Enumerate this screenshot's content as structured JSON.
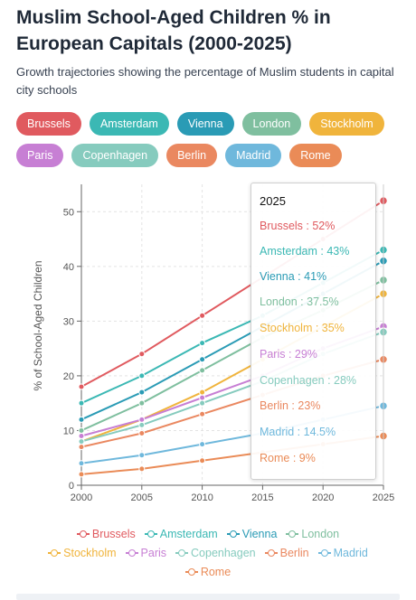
{
  "title": "Muslim School-Aged Children % in European Capitals (2000-2025)",
  "subtitle": "Growth trajectories showing the percentage of Muslim students in capital city schools",
  "colors": {
    "Brussels": "#e05a5f",
    "Amsterdam": "#3bb8b4",
    "Vienna": "#2a9bb5",
    "London": "#7fbf9f",
    "Stockholm": "#f0b43c",
    "Paris": "#c77fd4",
    "Copenhagen": "#86cbbe",
    "Berlin": "#ea8860",
    "Madrid": "#6fb8dc",
    "Rome": "#ea8b57"
  },
  "pills": [
    [
      "Brussels",
      "Amsterdam",
      "Vienna",
      "London",
      "Stockholm"
    ],
    [
      "Paris",
      "Copenhagen",
      "Berlin",
      "Madrid",
      "Rome"
    ]
  ],
  "tooltip": {
    "title": "2025",
    "rows": [
      {
        "name": "Brussels",
        "text": "Brussels : 52%"
      },
      {
        "name": "Amsterdam",
        "text": "Amsterdam : 43%"
      },
      {
        "name": "Vienna",
        "text": "Vienna : 41%"
      },
      {
        "name": "London",
        "text": "London : 37.5%"
      },
      {
        "name": "Stockholm",
        "text": "Stockholm : 35%"
      },
      {
        "name": "Paris",
        "text": "Paris : 29%"
      },
      {
        "name": "Copenhagen",
        "text": "Copenhagen : 28%"
      },
      {
        "name": "Berlin",
        "text": "Berlin : 23%"
      },
      {
        "name": "Madrid",
        "text": "Madrid : 14.5%"
      },
      {
        "name": "Rome",
        "text": "Rome : 9%"
      }
    ]
  },
  "legend_rows": [
    [
      "Brussels",
      "Amsterdam",
      "Vienna",
      "London"
    ],
    [
      "Stockholm",
      "Paris",
      "Copenhagen",
      "Berlin",
      "Madrid"
    ],
    [
      "Rome"
    ]
  ],
  "chart_data": {
    "type": "line",
    "x": [
      2000,
      2005,
      2010,
      2015,
      2020,
      2025
    ],
    "xlabel": "",
    "ylabel": "% of School-Aged Children",
    "ylim": [
      0,
      55
    ],
    "yticks": [
      0,
      10,
      20,
      30,
      40,
      50
    ],
    "grid": true,
    "legend": "bottom",
    "series": [
      {
        "name": "Brussels",
        "values": [
          18,
          24,
          31,
          38,
          45,
          52
        ]
      },
      {
        "name": "Amsterdam",
        "values": [
          15,
          20,
          26,
          31,
          37,
          43
        ]
      },
      {
        "name": "Vienna",
        "values": [
          12,
          17,
          23,
          29,
          35,
          41
        ]
      },
      {
        "name": "London",
        "values": [
          10,
          15,
          21,
          27,
          32,
          37.5
        ]
      },
      {
        "name": "Stockholm",
        "values": [
          8,
          12,
          17,
          23,
          29,
          35
        ]
      },
      {
        "name": "Paris",
        "values": [
          9,
          12,
          16,
          20,
          25,
          29
        ]
      },
      {
        "name": "Copenhagen",
        "values": [
          8,
          11,
          15,
          19,
          24,
          28
        ]
      },
      {
        "name": "Berlin",
        "values": [
          7,
          9.5,
          13,
          16.5,
          20,
          23
        ]
      },
      {
        "name": "Madrid",
        "values": [
          4,
          5.5,
          7.5,
          9.5,
          12,
          14.5
        ]
      },
      {
        "name": "Rome",
        "values": [
          2,
          3,
          4.5,
          6,
          7.5,
          9
        ]
      }
    ]
  }
}
